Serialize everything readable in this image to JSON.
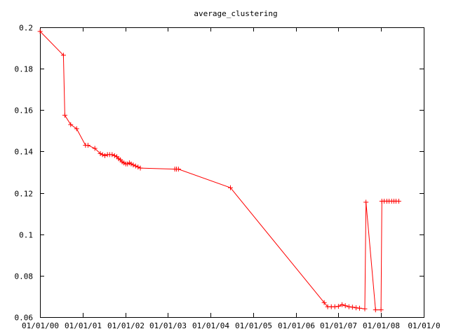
{
  "chart_data": {
    "type": "line",
    "title": "average_clustering",
    "xlabel": "",
    "ylabel": "",
    "x_axis_type": "date",
    "xlim": [
      "2000-01-01",
      "2009-01-01"
    ],
    "ylim": [
      0.06,
      0.2
    ],
    "grid": false,
    "legend": "none",
    "marker": "plus",
    "series_color": "#ff0000",
    "axis_color": "#000000",
    "x_ticks": [
      {
        "date": "2000-01-01",
        "label": "01/01/00"
      },
      {
        "date": "2001-01-01",
        "label": "01/01/01"
      },
      {
        "date": "2002-01-01",
        "label": "01/01/02"
      },
      {
        "date": "2003-01-01",
        "label": "01/01/03"
      },
      {
        "date": "2004-01-01",
        "label": "01/01/04"
      },
      {
        "date": "2005-01-01",
        "label": "01/01/05"
      },
      {
        "date": "2006-01-01",
        "label": "01/01/06"
      },
      {
        "date": "2007-01-01",
        "label": "01/01/07"
      },
      {
        "date": "2008-01-01",
        "label": "01/01/08"
      },
      {
        "date": "2009-01-01",
        "label": "01/01/0"
      }
    ],
    "y_ticks": [
      {
        "value": 0.06,
        "label": "0.06"
      },
      {
        "value": 0.08,
        "label": "0.08"
      },
      {
        "value": 0.1,
        "label": "0.1"
      },
      {
        "value": 0.12,
        "label": "0.12"
      },
      {
        "value": 0.14,
        "label": "0.14"
      },
      {
        "value": 0.16,
        "label": "0.16"
      },
      {
        "value": 0.18,
        "label": "0.18"
      },
      {
        "value": 0.2,
        "label": "0.2"
      }
    ],
    "series": [
      {
        "x": [
          "2000-01-02",
          "2000-07-20",
          "2000-08-01",
          "2000-09-20",
          "2000-11-10",
          "2001-01-25",
          "2001-02-15",
          "2001-04-15",
          "2001-06-01",
          "2001-06-20",
          "2001-07-10",
          "2001-08-01",
          "2001-08-20",
          "2001-09-10",
          "2001-10-01",
          "2001-10-20",
          "2001-11-05",
          "2001-11-20",
          "2001-12-05",
          "2001-12-20",
          "2002-01-05",
          "2002-01-20",
          "2002-02-05",
          "2002-02-20",
          "2002-03-10",
          "2002-03-30",
          "2002-04-20",
          "2002-05-10",
          "2003-03-01",
          "2003-03-15",
          "2003-04-01",
          "2004-06-20",
          "2006-09-01",
          "2006-10-01",
          "2006-11-01",
          "2006-12-01",
          "2007-01-01",
          "2007-02-01",
          "2007-03-01",
          "2007-04-01",
          "2007-05-01",
          "2007-06-01",
          "2007-07-01",
          "2007-08-15",
          "2007-08-25",
          "2007-11-15",
          "2008-01-01",
          "2008-01-08",
          "2008-01-28",
          "2008-02-20",
          "2008-03-10",
          "2008-04-01",
          "2008-04-20",
          "2008-05-08",
          "2008-06-01"
        ],
        "y": [
          0.198,
          0.1865,
          0.1575,
          0.153,
          0.151,
          0.143,
          0.143,
          0.1415,
          0.139,
          0.1385,
          0.138,
          0.1385,
          0.1385,
          0.1385,
          0.138,
          0.1375,
          0.1365,
          0.136,
          0.135,
          0.1345,
          0.134,
          0.134,
          0.1345,
          0.134,
          0.1335,
          0.133,
          0.1325,
          0.132,
          0.1315,
          0.1315,
          0.1315,
          0.1225,
          0.067,
          0.065,
          0.065,
          0.065,
          0.0652,
          0.066,
          0.0655,
          0.065,
          0.0648,
          0.0645,
          0.0643,
          0.064,
          0.1155,
          0.0635,
          0.0635,
          0.116,
          0.116,
          0.116,
          0.116,
          0.116,
          0.116,
          0.116,
          0.116
        ]
      }
    ]
  }
}
